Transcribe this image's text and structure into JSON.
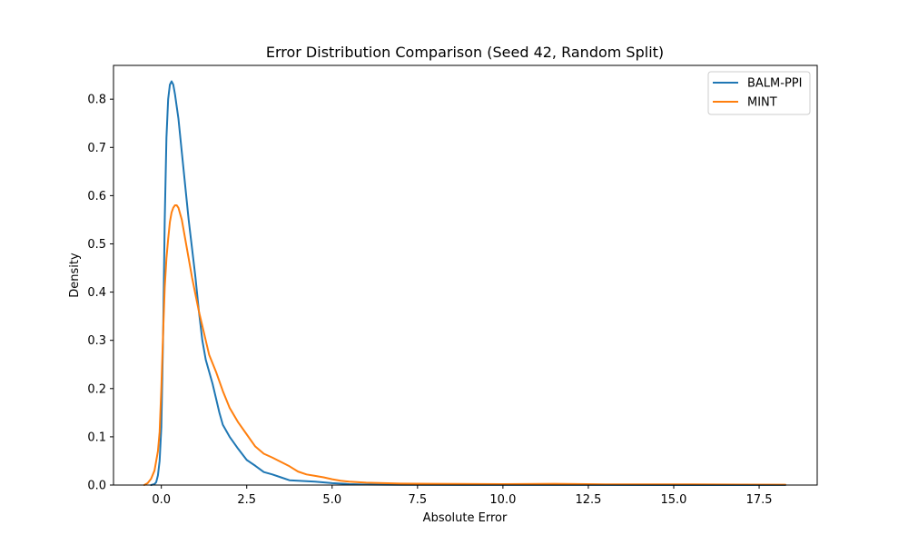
{
  "chart_data": {
    "type": "line",
    "title": "Error Distribution Comparison (Seed 42, Random Split)",
    "xlabel": "Absolute Error",
    "ylabel": "Density",
    "xlim": [
      -1.4,
      19.2
    ],
    "ylim": [
      0,
      0.87
    ],
    "xticks": [
      0.0,
      2.5,
      5.0,
      7.5,
      10.0,
      12.5,
      15.0,
      17.5
    ],
    "xtick_labels": [
      "0.0",
      "2.5",
      "5.0",
      "7.5",
      "10.0",
      "12.5",
      "15.0",
      "17.5"
    ],
    "yticks": [
      0.0,
      0.1,
      0.2,
      0.3,
      0.4,
      0.5,
      0.6,
      0.7,
      0.8
    ],
    "ytick_labels": [
      "0.0",
      "0.1",
      "0.2",
      "0.3",
      "0.4",
      "0.5",
      "0.6",
      "0.7",
      "0.8"
    ],
    "grid": false,
    "legend_position": "top-right",
    "series": [
      {
        "name": "BALM-PPI",
        "color": "#1f77b4",
        "points": [
          [
            -0.3,
            0.0
          ],
          [
            -0.2,
            0.002
          ],
          [
            -0.15,
            0.006
          ],
          [
            -0.1,
            0.02
          ],
          [
            -0.05,
            0.05
          ],
          [
            0.0,
            0.12
          ],
          [
            0.05,
            0.3
          ],
          [
            0.1,
            0.55
          ],
          [
            0.15,
            0.72
          ],
          [
            0.2,
            0.8
          ],
          [
            0.25,
            0.83
          ],
          [
            0.3,
            0.837
          ],
          [
            0.35,
            0.83
          ],
          [
            0.4,
            0.81
          ],
          [
            0.5,
            0.76
          ],
          [
            0.6,
            0.69
          ],
          [
            0.7,
            0.62
          ],
          [
            0.8,
            0.55
          ],
          [
            0.9,
            0.49
          ],
          [
            1.0,
            0.43
          ],
          [
            1.1,
            0.36
          ],
          [
            1.2,
            0.3
          ],
          [
            1.3,
            0.26
          ],
          [
            1.4,
            0.235
          ],
          [
            1.5,
            0.21
          ],
          [
            1.6,
            0.18
          ],
          [
            1.7,
            0.15
          ],
          [
            1.8,
            0.125
          ],
          [
            2.0,
            0.1
          ],
          [
            2.25,
            0.075
          ],
          [
            2.5,
            0.052
          ],
          [
            2.75,
            0.04
          ],
          [
            3.0,
            0.027
          ],
          [
            3.25,
            0.022
          ],
          [
            3.5,
            0.016
          ],
          [
            3.75,
            0.01
          ],
          [
            4.0,
            0.009
          ],
          [
            4.5,
            0.007
          ],
          [
            5.0,
            0.004
          ],
          [
            5.5,
            0.002
          ],
          [
            6.0,
            0.001
          ],
          [
            7.0,
            0.0005
          ],
          [
            9.0,
            0.0003
          ],
          [
            12.0,
            0.0002
          ],
          [
            15.0,
            0.0001
          ],
          [
            18.27,
            0.0
          ]
        ]
      },
      {
        "name": "MINT",
        "color": "#ff7f0e",
        "points": [
          [
            -0.5,
            0.0
          ],
          [
            -0.4,
            0.004
          ],
          [
            -0.3,
            0.013
          ],
          [
            -0.2,
            0.03
          ],
          [
            -0.1,
            0.07
          ],
          [
            -0.05,
            0.11
          ],
          [
            0.0,
            0.2
          ],
          [
            0.05,
            0.31
          ],
          [
            0.1,
            0.41
          ],
          [
            0.15,
            0.47
          ],
          [
            0.2,
            0.51
          ],
          [
            0.25,
            0.545
          ],
          [
            0.3,
            0.565
          ],
          [
            0.35,
            0.575
          ],
          [
            0.4,
            0.58
          ],
          [
            0.45,
            0.58
          ],
          [
            0.5,
            0.575
          ],
          [
            0.6,
            0.55
          ],
          [
            0.7,
            0.51
          ],
          [
            0.8,
            0.47
          ],
          [
            0.9,
            0.43
          ],
          [
            1.0,
            0.395
          ],
          [
            1.1,
            0.36
          ],
          [
            1.2,
            0.33
          ],
          [
            1.3,
            0.3
          ],
          [
            1.4,
            0.27
          ],
          [
            1.6,
            0.235
          ],
          [
            1.8,
            0.195
          ],
          [
            2.0,
            0.16
          ],
          [
            2.25,
            0.13
          ],
          [
            2.5,
            0.105
          ],
          [
            2.75,
            0.08
          ],
          [
            3.0,
            0.065
          ],
          [
            3.25,
            0.057
          ],
          [
            3.5,
            0.048
          ],
          [
            3.75,
            0.039
          ],
          [
            4.0,
            0.028
          ],
          [
            4.25,
            0.022
          ],
          [
            4.5,
            0.019
          ],
          [
            4.75,
            0.016
          ],
          [
            5.0,
            0.012
          ],
          [
            5.25,
            0.009
          ],
          [
            5.5,
            0.007
          ],
          [
            6.0,
            0.005
          ],
          [
            6.5,
            0.004
          ],
          [
            7.0,
            0.003
          ],
          [
            8.0,
            0.0025
          ],
          [
            10.0,
            0.002
          ],
          [
            11.5,
            0.0025
          ],
          [
            13.0,
            0.0015
          ],
          [
            15.0,
            0.0015
          ],
          [
            17.0,
            0.001
          ],
          [
            18.27,
            0.0008
          ]
        ]
      }
    ]
  }
}
